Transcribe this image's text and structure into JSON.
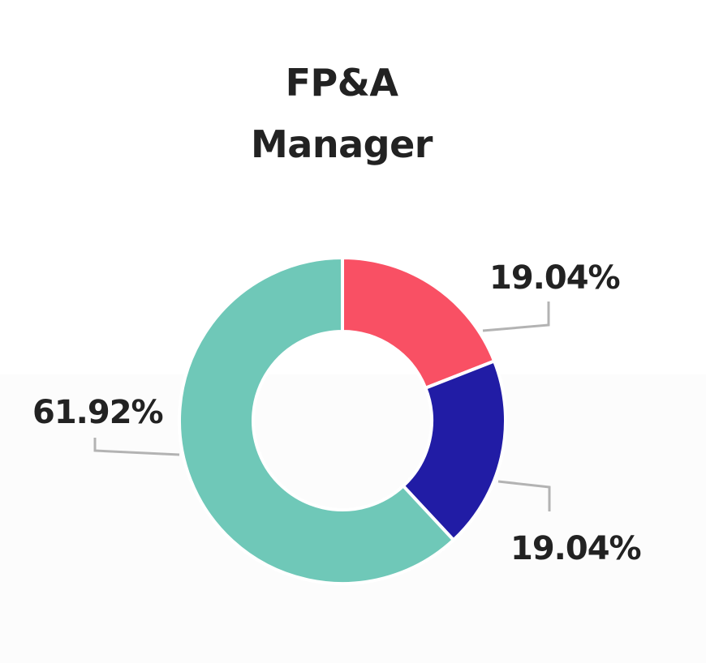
{
  "chart_data": {
    "type": "pie",
    "title_lines": [
      "FP&A",
      "Manager"
    ],
    "donut": true,
    "slices": [
      {
        "label": "19.04%",
        "value": 19.04,
        "color": "#f95064"
      },
      {
        "label": "19.04%",
        "value": 19.04,
        "color": "#211ca5"
      },
      {
        "label": "61.92%",
        "value": 61.92,
        "color": "#6fc8b8"
      }
    ],
    "legend": "none"
  }
}
